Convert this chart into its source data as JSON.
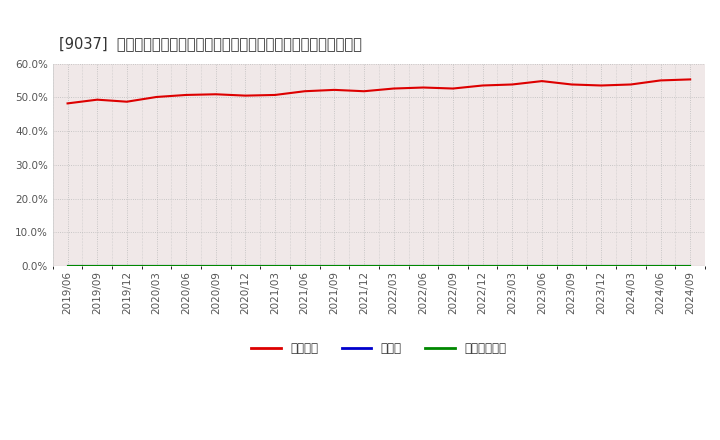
{
  "title": "[9037]  自己資本、のれん、繰延税金資産の総資産に対する比率の推移",
  "x_labels": [
    "2019/06",
    "2019/09",
    "2019/12",
    "2020/03",
    "2020/06",
    "2020/09",
    "2020/12",
    "2021/03",
    "2021/06",
    "2021/09",
    "2021/12",
    "2022/03",
    "2022/06",
    "2022/09",
    "2022/12",
    "2023/03",
    "2023/06",
    "2023/09",
    "2023/12",
    "2024/03",
    "2024/06",
    "2024/09"
  ],
  "equity_ratio": [
    48.2,
    49.3,
    48.7,
    50.1,
    50.7,
    50.9,
    50.5,
    50.7,
    51.8,
    52.2,
    51.8,
    52.6,
    52.9,
    52.6,
    53.5,
    53.8,
    54.8,
    53.8,
    53.5,
    53.8,
    55.0,
    55.3
  ],
  "goodwill_ratio": [
    0.0,
    0.0,
    0.0,
    0.0,
    0.0,
    0.0,
    0.0,
    0.0,
    0.0,
    0.0,
    0.0,
    0.0,
    0.0,
    0.0,
    0.0,
    0.0,
    0.0,
    0.0,
    0.0,
    0.0,
    0.0,
    0.0
  ],
  "deferred_tax_ratio": [
    0.0,
    0.0,
    0.0,
    0.0,
    0.0,
    0.0,
    0.0,
    0.0,
    0.0,
    0.0,
    0.0,
    0.0,
    0.0,
    0.0,
    0.0,
    0.0,
    0.0,
    0.0,
    0.0,
    0.0,
    0.0,
    0.0
  ],
  "equity_color": "#dd0000",
  "goodwill_color": "#0000cc",
  "deferred_tax_color": "#008800",
  "background_color": "#ffffff",
  "grid_color": "#bbbbbb",
  "plot_bg_color": "#f0e8e8",
  "ylim": [
    0,
    60
  ],
  "yticks": [
    0,
    10,
    20,
    30,
    40,
    50,
    60
  ],
  "legend_labels": [
    "自己資本",
    "のれん",
    "繰延税金資産"
  ],
  "title_fontsize": 10.5,
  "tick_fontsize": 7.5
}
